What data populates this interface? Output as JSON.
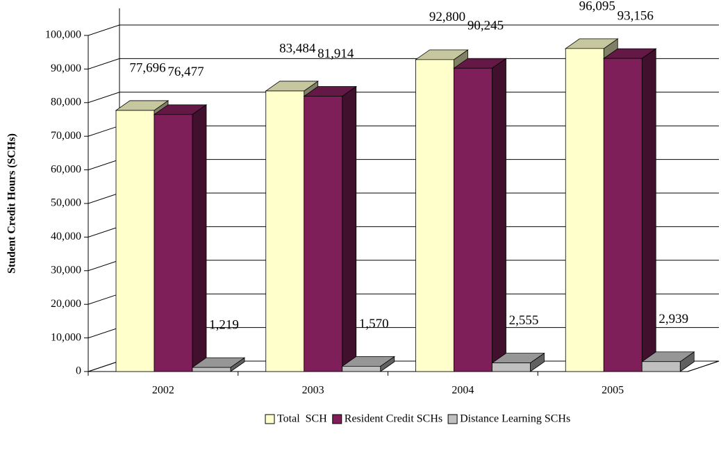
{
  "chart_data": {
    "type": "bar3d",
    "y_axis_label": "Student Credit Hours (SCHs)",
    "categories": [
      "2002",
      "2003",
      "2004",
      "2005"
    ],
    "series": [
      {
        "name": "Total  SCH",
        "color": "#FFFFCC",
        "values": [
          77696,
          83484,
          92800,
          96095
        ],
        "value_labels": [
          "77,696",
          "83,484",
          "92,800",
          "96,095"
        ]
      },
      {
        "name": "Resident Credit SCHs",
        "color": "#7F1F5A",
        "values": [
          76477,
          81914,
          90245,
          93156
        ],
        "value_labels": [
          "76,477",
          "81,914",
          "90,245",
          "93,156"
        ]
      },
      {
        "name": "Distance Learning SCHs",
        "color": "#C0C0C0",
        "values": [
          1219,
          1570,
          2555,
          2939
        ],
        "value_labels": [
          "1,219",
          "1,570",
          "2,555",
          "2,939"
        ]
      }
    ],
    "ylim": [
      0,
      100000
    ],
    "yticks": [
      0,
      {
        "value": 10000,
        "label": "10,000"
      },
      {
        "value": 20000,
        "label": "20,000"
      },
      {
        "value": 30000,
        "label": "30,000"
      },
      {
        "value": 40000,
        "label": "40,000"
      },
      {
        "value": 50000,
        "label": "50,000"
      },
      {
        "value": 60000,
        "label": "60,000"
      },
      {
        "value": 70000,
        "label": "70,000"
      },
      {
        "value": 80000,
        "label": "80,000"
      },
      {
        "value": 90000,
        "label": "90,000"
      },
      {
        "value": 100000,
        "label": "100,000"
      }
    ],
    "grid": true,
    "legend": "bottom"
  }
}
